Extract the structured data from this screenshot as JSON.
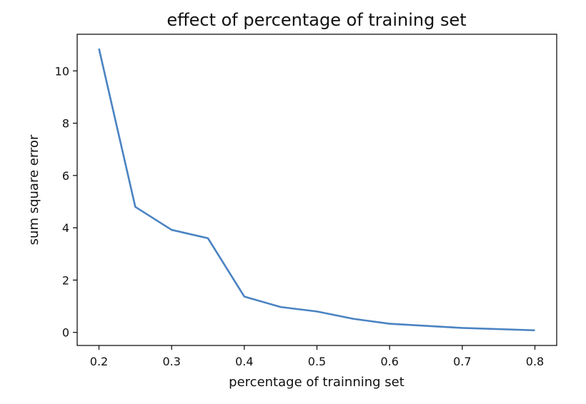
{
  "chart_data": {
    "type": "line",
    "title": "effect of percentage of training set",
    "xlabel": "percentage of trainning set",
    "ylabel": "sum square error",
    "xlim": [
      0.17,
      0.83
    ],
    "ylim": [
      -0.5,
      11.4
    ],
    "xticks": [
      0.2,
      0.3,
      0.4,
      0.5,
      0.6,
      0.7,
      0.8
    ],
    "xtick_labels": [
      "0.2",
      "0.3",
      "0.4",
      "0.5",
      "0.6",
      "0.7",
      "0.8"
    ],
    "yticks": [
      0,
      2,
      4,
      6,
      8,
      10
    ],
    "ytick_labels": [
      "0",
      "2",
      "4",
      "6",
      "8",
      "10"
    ],
    "grid": false,
    "series": [
      {
        "color": "#4a83c2",
        "x": [
          0.2,
          0.25,
          0.3,
          0.35,
          0.4,
          0.45,
          0.5,
          0.55,
          0.6,
          0.7,
          0.8
        ],
        "y": [
          10.85,
          4.8,
          3.92,
          3.6,
          1.37,
          0.97,
          0.8,
          0.52,
          0.33,
          0.17,
          0.08
        ]
      }
    ]
  }
}
